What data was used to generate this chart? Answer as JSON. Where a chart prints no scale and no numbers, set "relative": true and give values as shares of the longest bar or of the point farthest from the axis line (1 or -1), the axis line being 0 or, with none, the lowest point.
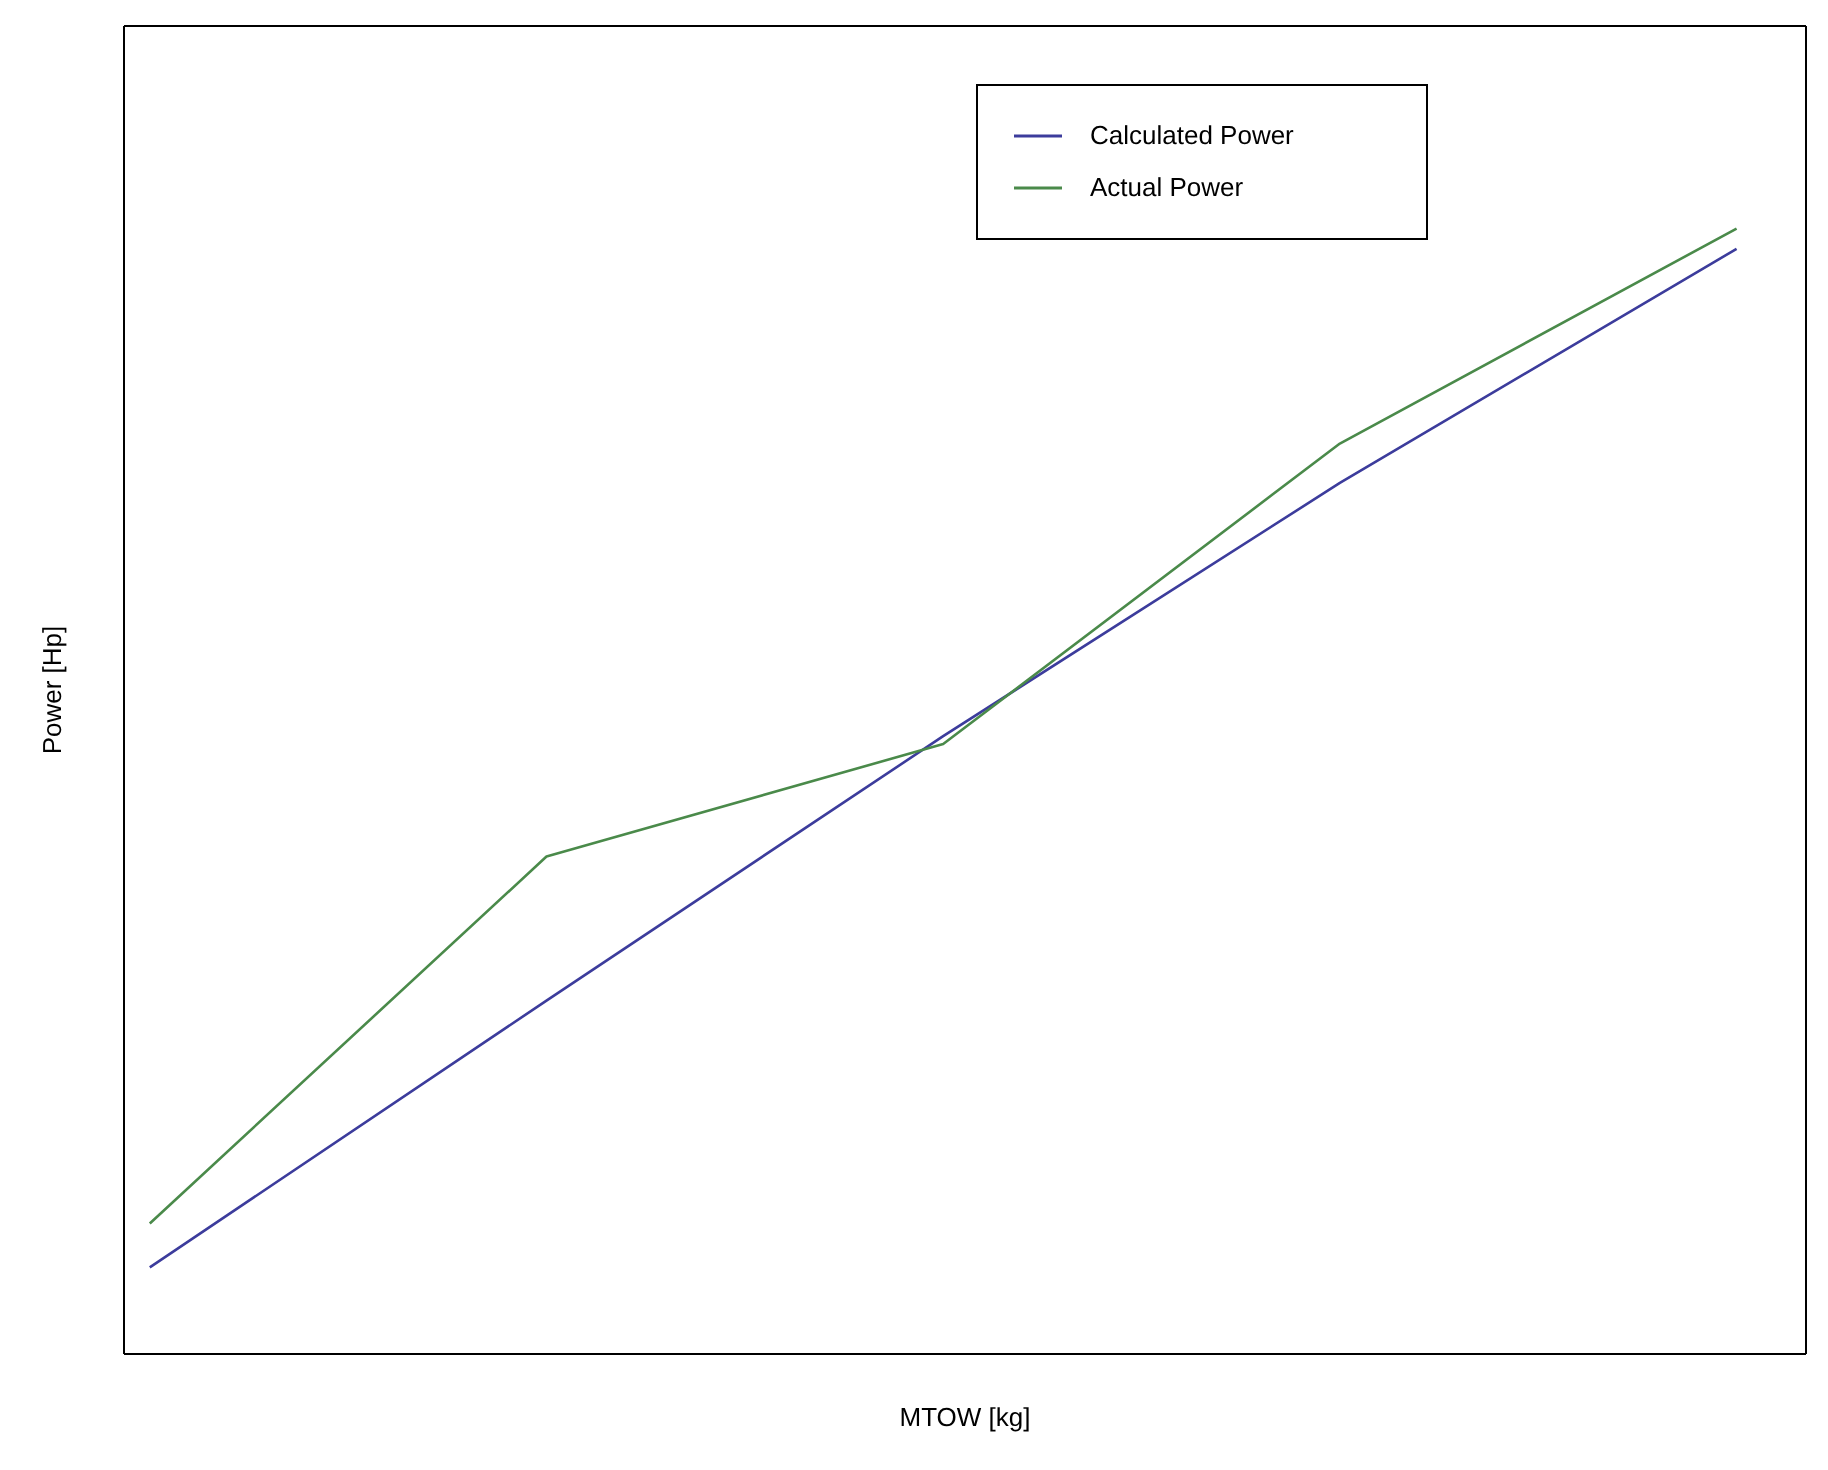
{
  "chart_data": {
    "type": "line",
    "xlabel": "MTOW [kg]",
    "ylabel": "Power [Hp]",
    "relative": true,
    "categories": [
      null,
      null,
      null,
      null,
      null
    ],
    "series": [
      {
        "name": "Calculated Power",
        "color": "#3c3c9c",
        "values": [
          0.077,
          0.314,
          0.549,
          0.774,
          0.982
        ]
      },
      {
        "name": "Actual Power",
        "color": "#4a8a4a",
        "values": [
          0.116,
          0.442,
          0.542,
          0.809,
          1.0
        ]
      }
    ],
    "legend": "top right",
    "marker": "none",
    "line_style": "solid"
  }
}
